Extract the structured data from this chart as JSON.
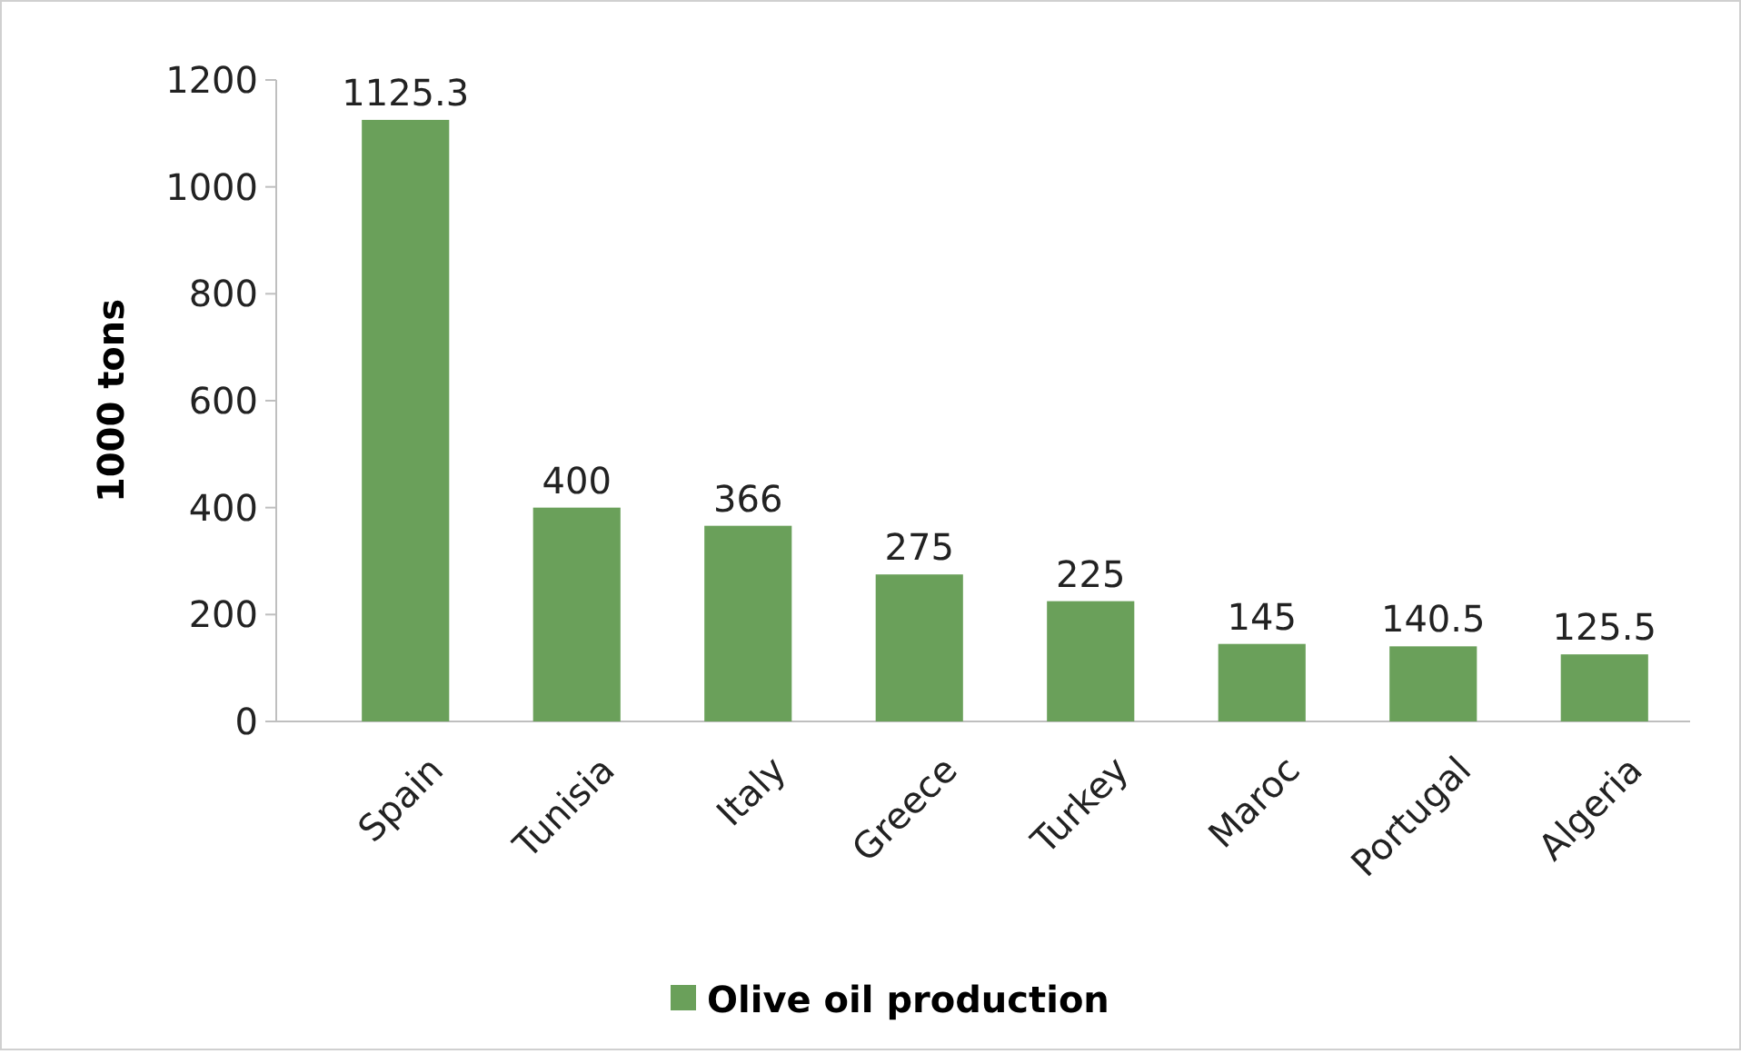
{
  "chart_data": {
    "type": "bar",
    "ylabel": "1000 tons",
    "categories": [
      "Spain",
      "Tunisia",
      "Italy",
      "Greece",
      "Turkey",
      "Maroc",
      "Portugal",
      "Algeria"
    ],
    "series": [
      {
        "name": "Olive oil production",
        "color": "#6aa05a",
        "values": [
          1125.3,
          400,
          366,
          275,
          225,
          145,
          140.5,
          125.5
        ]
      }
    ],
    "ylim": [
      0,
      1200
    ],
    "yticks": [
      0,
      200,
      400,
      600,
      800,
      1000,
      1200
    ],
    "data_labels": true,
    "legend": "bottom"
  }
}
